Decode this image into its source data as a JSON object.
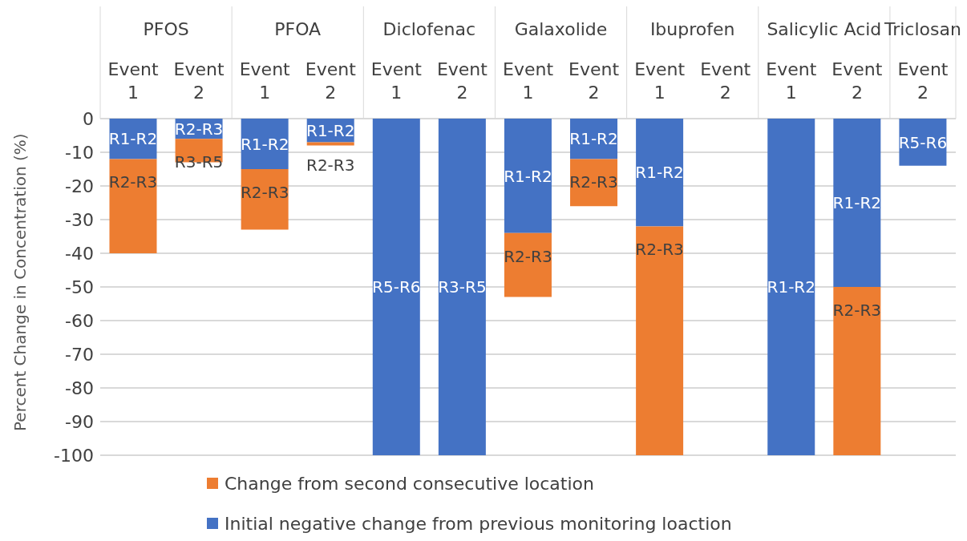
{
  "chart_data": {
    "type": "bar",
    "stacked": true,
    "ylabel": "Percent Change in Concentration (%)",
    "categories": [
      "Event 1",
      "Event 2",
      "Event 1",
      "Event 2",
      "Event 1",
      "Event 2",
      "Event 1",
      "Event 2",
      "Event 1",
      "Event 2",
      "Event 1",
      "Event 2",
      "Event 2"
    ],
    "annotations": [
      "PFOS",
      "PFOA",
      "Diclofenac",
      "Galaxolide",
      "Ibuprofen",
      "Salicylic Acid",
      "Triclosan"
    ],
    "series": [
      {
        "name": "Initial negative change from previous monitoring loaction",
        "color": "#4472c4",
        "values": [
          -12,
          -6,
          -15,
          -7,
          -100,
          -100,
          -34,
          -12,
          -32,
          null,
          -100,
          -50,
          -14
        ],
        "value_labels": [
          "R1-R2",
          "R2-R3",
          "R1-R2",
          "R1-R2",
          "R5-R6",
          "R3-R5",
          "R1-R2",
          "R1-R2",
          "R1-R2",
          null,
          "R1-R2",
          "R1-R2",
          "R5-R6"
        ]
      },
      {
        "name": "Change from second consecutive location",
        "color": "#ed7d31",
        "values": [
          -28,
          -7,
          -18,
          -1,
          null,
          null,
          -19,
          -14,
          -68,
          null,
          null,
          -50,
          null
        ],
        "value_labels": [
          "R2-R3",
          "R3-R5",
          "R2-R3",
          "R2-R3",
          null,
          null,
          "R2-R3",
          "R2-R3",
          "R2-R3",
          null,
          null,
          "R2-R3",
          null
        ]
      }
    ],
    "ylim": [
      -100,
      0
    ],
    "yticks": [
      0,
      -10,
      -20,
      -30,
      -40,
      -50,
      -60,
      -70,
      -80,
      -90,
      -100
    ],
    "grid": "y",
    "legend": "bottom"
  }
}
